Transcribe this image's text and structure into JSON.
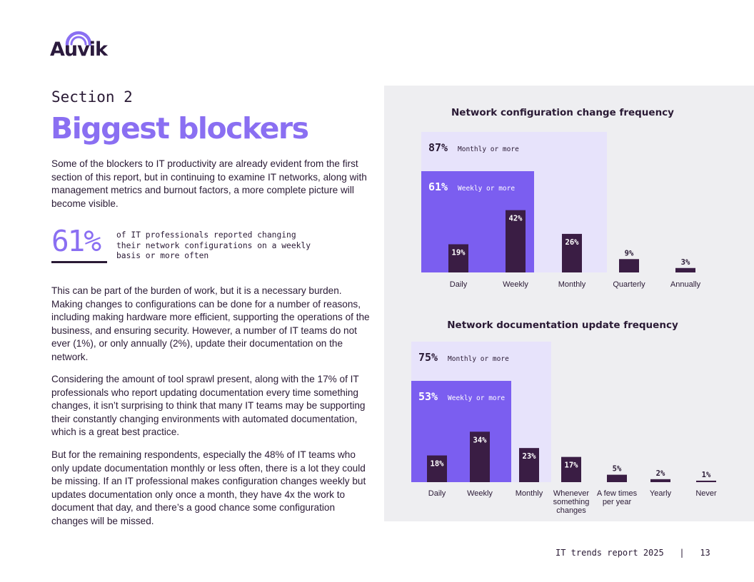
{
  "brand": {
    "name": "Auvik"
  },
  "colors": {
    "accent": "#8a6ff2",
    "dark": "#3a1d44",
    "light_band": "#e7e3fb",
    "medium_band": "#7b5ef0",
    "panel_bg": "#eeeef1"
  },
  "header": {
    "section_label": "Section 2",
    "title": "Biggest blockers"
  },
  "body": {
    "p1": "Some of the blockers to IT productivity are already evident from the first section of this report, but in continuing to examine IT networks, along with management metrics and burnout factors, a more complete picture will become visible.",
    "p2": "This can be part of the burden of work, but it is a necessary burden. Making changes to configurations can be done for a number of reasons, including making hardware more efficient, supporting the operations of the business, and ensuring security. However, a number of IT teams do not ever (1%), or only annually (2%), update their documentation on the network.",
    "p3": "Considering the amount of tool sprawl present, along with the 17% of IT professionals who report updating documentation every time something changes, it isn’t surprising to think that many IT teams may be supporting their constantly changing environments with automated documentation, which is a great best practice.",
    "p4": "But for the remaining respondents, especially the 48% of IT teams who only update documentation monthly or less often, there is a lot they could be missing. If an IT professional makes configuration changes weekly but updates documentation only once a month, they have 4x the work to document that day, and there’s a good chance some configuration changes will be missed."
  },
  "stat": {
    "value": "61%",
    "text": "of IT professionals reported changing their network configurations on a weekly basis or more often"
  },
  "chart_data": [
    {
      "type": "bar",
      "title": "Network configuration change frequency",
      "categories": [
        "Daily",
        "Weekly",
        "Monthly",
        "Quarterly",
        "Annually"
      ],
      "values": [
        19,
        42,
        26,
        9,
        3
      ],
      "value_labels": [
        "19%",
        "42%",
        "26%",
        "9%",
        "3%"
      ],
      "bands": [
        {
          "value": "87%",
          "label": "Monthly or more",
          "covers": 3,
          "tone": "light"
        },
        {
          "value": "61%",
          "label": "Weekly or more",
          "covers": 2,
          "tone": "medium"
        }
      ],
      "ylim": [
        0,
        100
      ]
    },
    {
      "type": "bar",
      "title": "Network documentation update frequency",
      "categories": [
        "Daily",
        "Weekly",
        "Monthly",
        "Whenever something changes",
        "A few times per year",
        "Yearly",
        "Never"
      ],
      "values": [
        18,
        34,
        23,
        17,
        5,
        2,
        1
      ],
      "value_labels": [
        "18%",
        "34%",
        "23%",
        "17%",
        "5%",
        "2%",
        "1%"
      ],
      "bands": [
        {
          "value": "75%",
          "label": "Monthly or more",
          "covers": 3,
          "tone": "light"
        },
        {
          "value": "53%",
          "label": "Weekly or more",
          "covers": 2,
          "tone": "medium"
        }
      ],
      "ylim": [
        0,
        100
      ]
    }
  ],
  "footer": {
    "report": "IT trends report 2025",
    "separator": "|",
    "page": "13"
  }
}
